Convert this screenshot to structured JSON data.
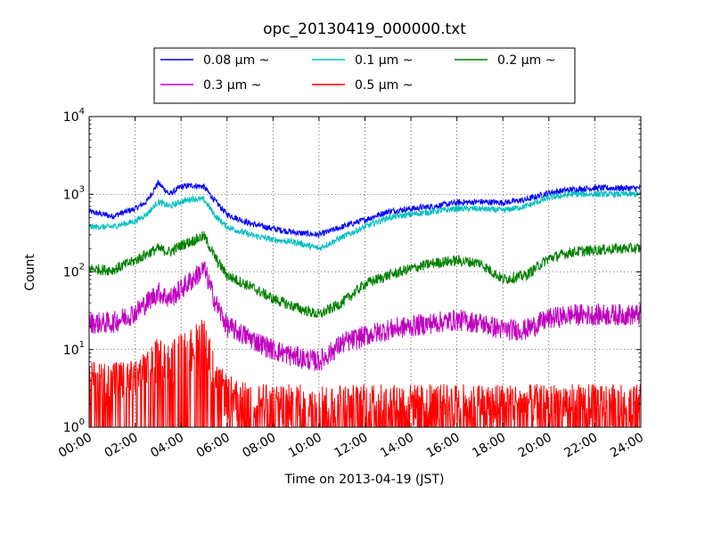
{
  "chart_data": {
    "type": "line",
    "title": "opc_20130419_000000.txt",
    "xlabel": "Time on 2013-04-19 (JST)",
    "ylabel": "Count",
    "yscale": "log",
    "ylim": [
      1,
      10000
    ],
    "xlim": [
      "00:00",
      "24:00"
    ],
    "grid": true,
    "legend_position": "top, above plot, 3 columns",
    "x_ticks": [
      "00:00",
      "02:00",
      "04:00",
      "06:00",
      "08:00",
      "10:00",
      "12:00",
      "14:00",
      "16:00",
      "18:00",
      "20:00",
      "22:00",
      "24:00"
    ],
    "y_ticks": [
      {
        "base": "10",
        "exp": "0"
      },
      {
        "base": "10",
        "exp": "1"
      },
      {
        "base": "10",
        "exp": "2"
      },
      {
        "base": "10",
        "exp": "3"
      },
      {
        "base": "10",
        "exp": "4"
      }
    ],
    "x": [
      "00:00",
      "01:00",
      "02:00",
      "02:30",
      "03:00",
      "03:30",
      "04:00",
      "04:30",
      "05:00",
      "05:30",
      "06:00",
      "07:00",
      "08:00",
      "09:00",
      "10:00",
      "11:00",
      "12:00",
      "13:00",
      "14:00",
      "15:00",
      "16:00",
      "17:00",
      "18:00",
      "19:00",
      "20:00",
      "21:00",
      "22:00",
      "23:00",
      "24:00"
    ],
    "series": [
      {
        "name": "0.08 μm ~",
        "color": "#0000ff",
        "noise": 0.04,
        "values": [
          600,
          520,
          650,
          800,
          1400,
          1000,
          1250,
          1300,
          1250,
          800,
          550,
          420,
          360,
          320,
          300,
          380,
          470,
          600,
          650,
          700,
          780,
          800,
          780,
          850,
          1050,
          1150,
          1200,
          1200,
          1200
        ]
      },
      {
        "name": "0.1 μm ~",
        "color": "#00bfbf",
        "noise": 0.04,
        "values": [
          380,
          380,
          450,
          550,
          800,
          700,
          800,
          880,
          850,
          520,
          380,
          300,
          260,
          240,
          200,
          280,
          380,
          500,
          550,
          600,
          650,
          650,
          620,
          700,
          900,
          1000,
          1000,
          1000,
          1000
        ]
      },
      {
        "name": "0.2 μm ~",
        "color": "#008000",
        "noise": 0.07,
        "values": [
          110,
          105,
          140,
          170,
          200,
          180,
          220,
          250,
          290,
          150,
          90,
          65,
          45,
          35,
          28,
          40,
          70,
          90,
          110,
          130,
          140,
          130,
          80,
          90,
          150,
          180,
          190,
          200,
          200
        ]
      },
      {
        "name": "0.3 μm ~",
        "color": "#bf00bf",
        "noise": 0.14,
        "values": [
          22,
          22,
          30,
          40,
          55,
          45,
          60,
          80,
          110,
          40,
          20,
          14,
          10,
          8,
          7,
          12,
          15,
          18,
          20,
          22,
          24,
          22,
          18,
          18,
          25,
          28,
          28,
          28,
          28
        ]
      },
      {
        "name": "0.5 μm ~",
        "color": "#ff0000",
        "noise": 0.3,
        "values": [
          3,
          3,
          3,
          4,
          6,
          5,
          7,
          8,
          12,
          3,
          2,
          1.5,
          1.5,
          1.5,
          1.5,
          1.5,
          1.5,
          1.5,
          1.5,
          1.5,
          1.5,
          1.5,
          1.5,
          1.5,
          1.5,
          1.5,
          1.5,
          1.5,
          1.5
        ]
      }
    ]
  }
}
